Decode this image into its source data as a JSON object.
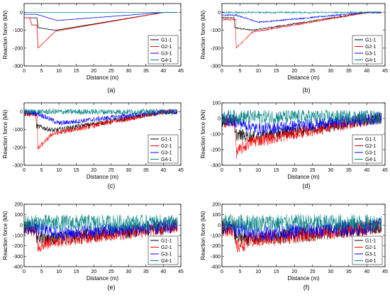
{
  "colors": {
    "G1-1": "#000000",
    "G2-1": "#ff0000",
    "G3-1": "#0000ff",
    "G4-1": "#008080"
  },
  "chart_data": [
    {
      "panel_label": "(a)",
      "type": "line",
      "xlabel": "Distance (m)",
      "ylabel": "Reaction force (kN)",
      "xlim": [
        0,
        45
      ],
      "ylim": [
        -300,
        50
      ],
      "xticks": [
        0,
        5,
        10,
        15,
        20,
        25,
        30,
        35,
        40,
        45
      ],
      "yticks": [
        0,
        -100,
        -200,
        -300
      ],
      "legend": {
        "placement": "bottom-right",
        "entries": [
          "G1-1",
          "G2-1",
          "G3-1",
          "G4-1"
        ]
      },
      "noise": 0,
      "series": [
        {
          "name": "G1-1",
          "x": [
            0,
            2,
            3.9,
            4,
            9,
            40,
            44
          ],
          "y": [
            -30,
            -30,
            -30,
            -85,
            -100,
            0,
            0
          ]
        },
        {
          "name": "G2-1",
          "x": [
            0,
            1.8,
            1.9,
            3.9,
            4,
            9,
            40,
            44
          ],
          "y": [
            -30,
            -30,
            -70,
            -70,
            -200,
            -105,
            0,
            0
          ]
        },
        {
          "name": "G3-1",
          "x": [
            0,
            3.5,
            9.5,
            40,
            44
          ],
          "y": [
            -10,
            -10,
            -45,
            0,
            0
          ]
        },
        {
          "name": "G4-1",
          "x": [
            0,
            44
          ],
          "y": [
            0,
            0
          ]
        }
      ]
    },
    {
      "panel_label": "(b)",
      "type": "line",
      "xlabel": "Distance (m)",
      "ylabel": "Reaction force (kN)",
      "xlim": [
        0,
        45
      ],
      "ylim": [
        -300,
        50
      ],
      "xticks": [
        0,
        5,
        10,
        15,
        20,
        25,
        30,
        35,
        40,
        45
      ],
      "yticks": [
        0,
        -100,
        -200,
        -300
      ],
      "legend": {
        "placement": "bottom-right",
        "entries": [
          "G1-1",
          "G2-1",
          "G3-1",
          "G4-1"
        ]
      },
      "noise": 4,
      "series": [
        {
          "name": "G1-1",
          "x": [
            0,
            3.4,
            3.5,
            8.5,
            40,
            44
          ],
          "y": [
            -30,
            -30,
            -85,
            -100,
            0,
            0
          ]
        },
        {
          "name": "G2-1",
          "x": [
            0,
            3.8,
            3.9,
            8.5,
            40,
            44
          ],
          "y": [
            -40,
            -40,
            -200,
            -110,
            0,
            0
          ]
        },
        {
          "name": "G3-1",
          "x": [
            0,
            4,
            10,
            40,
            44
          ],
          "y": [
            -15,
            -15,
            -55,
            0,
            0
          ]
        },
        {
          "name": "G4-1",
          "x": [
            0,
            44
          ],
          "y": [
            0,
            0
          ]
        }
      ]
    },
    {
      "panel_label": "(c)",
      "type": "line",
      "xlabel": "Distance (m)",
      "ylabel": "Reaction force (kN)",
      "xlim": [
        0,
        45
      ],
      "ylim": [
        -300,
        50
      ],
      "xticks": [
        0,
        5,
        10,
        15,
        20,
        25,
        30,
        35,
        40,
        45
      ],
      "yticks": [
        0,
        -100,
        -200,
        -300
      ],
      "legend": {
        "placement": "bottom-right",
        "entries": [
          "G1-1",
          "G2-1",
          "G3-1",
          "G4-1"
        ]
      },
      "noise": 14,
      "series": [
        {
          "name": "G1-1",
          "x": [
            0,
            3.4,
            3.5,
            8.5,
            40,
            44
          ],
          "y": [
            -10,
            -10,
            -80,
            -105,
            -5,
            0
          ]
        },
        {
          "name": "G2-1",
          "x": [
            0,
            3.8,
            3.9,
            8,
            40,
            44
          ],
          "y": [
            -15,
            -15,
            -210,
            -125,
            0,
            0
          ]
        },
        {
          "name": "G3-1",
          "x": [
            0,
            4,
            10,
            40,
            44
          ],
          "y": [
            0,
            -10,
            -65,
            0,
            0
          ]
        },
        {
          "name": "G4-1",
          "x": [
            0,
            44
          ],
          "y": [
            0,
            0
          ]
        }
      ]
    },
    {
      "panel_label": "(d)",
      "type": "line",
      "xlabel": "Distance (m)",
      "ylabel": "Reaction force (kN)",
      "xlim": [
        0,
        45
      ],
      "ylim": [
        -300,
        100
      ],
      "xticks": [
        0,
        5,
        10,
        15,
        20,
        25,
        30,
        35,
        40,
        45
      ],
      "yticks": [
        100,
        0,
        -100,
        -200,
        -300
      ],
      "legend": {
        "placement": "bottom-right",
        "entries": [
          "G1-1",
          "G2-1",
          "G3-1",
          "G4-1"
        ]
      },
      "noise": 40,
      "series": [
        {
          "name": "G1-1",
          "x": [
            0,
            3.4,
            3.5,
            8.5,
            40,
            44
          ],
          "y": [
            -15,
            -15,
            -100,
            -120,
            -10,
            0
          ]
        },
        {
          "name": "G2-1",
          "x": [
            0,
            3.8,
            3.9,
            8,
            40,
            44
          ],
          "y": [
            -20,
            -20,
            -220,
            -150,
            -10,
            0
          ]
        },
        {
          "name": "G3-1",
          "x": [
            0,
            4,
            10,
            40,
            44
          ],
          "y": [
            0,
            -20,
            -70,
            -5,
            0
          ]
        },
        {
          "name": "G4-1",
          "x": [
            0,
            44
          ],
          "y": [
            10,
            10
          ]
        }
      ]
    },
    {
      "panel_label": "(e)",
      "type": "line",
      "xlabel": "Distance (m)",
      "ylabel": "Reaction force (kN)",
      "xlim": [
        0,
        45
      ],
      "ylim": [
        -400,
        200
      ],
      "xticks": [
        0,
        5,
        10,
        15,
        20,
        25,
        30,
        35,
        40,
        45
      ],
      "yticks": [
        200,
        100,
        0,
        -100,
        -200,
        -300,
        -400
      ],
      "legend": {
        "placement": "bottom-right",
        "entries": [
          "G1-1",
          "G2-1",
          "G3-1",
          "G4-1"
        ]
      },
      "noise": 70,
      "series": [
        {
          "name": "G1-1",
          "x": [
            0,
            3.4,
            3.5,
            8.5,
            40,
            44
          ],
          "y": [
            -30,
            -30,
            -110,
            -130,
            -30,
            0
          ]
        },
        {
          "name": "G2-1",
          "x": [
            0,
            3.8,
            3.9,
            8,
            40,
            44
          ],
          "y": [
            -40,
            -40,
            -200,
            -150,
            -30,
            0
          ]
        },
        {
          "name": "G3-1",
          "x": [
            0,
            4,
            10,
            40,
            44
          ],
          "y": [
            -20,
            -30,
            -80,
            -20,
            0
          ]
        },
        {
          "name": "G4-1",
          "x": [
            0,
            44
          ],
          "y": [
            20,
            20
          ]
        }
      ]
    },
    {
      "panel_label": "(f)",
      "type": "line",
      "xlabel": "Distance (m)",
      "ylabel": "Reaction force (kN)",
      "xlim": [
        0,
        45
      ],
      "ylim": [
        -400,
        200
      ],
      "xticks": [
        0,
        5,
        10,
        15,
        20,
        25,
        30,
        35,
        40,
        45
      ],
      "yticks": [
        200,
        100,
        0,
        -100,
        -200,
        -300,
        -400
      ],
      "legend": {
        "placement": "bottom-right",
        "entries": [
          "G1-1",
          "G2-1",
          "G3-1",
          "G4-1"
        ]
      },
      "noise": 75,
      "series": [
        {
          "name": "G1-1",
          "x": [
            0,
            3.4,
            3.5,
            8.5,
            40,
            44
          ],
          "y": [
            -30,
            -30,
            -110,
            -130,
            -30,
            0
          ]
        },
        {
          "name": "G2-1",
          "x": [
            0,
            3.8,
            3.9,
            8,
            40,
            44
          ],
          "y": [
            -40,
            -40,
            -210,
            -150,
            -30,
            0
          ]
        },
        {
          "name": "G3-1",
          "x": [
            0,
            4,
            10,
            40,
            44
          ],
          "y": [
            -20,
            -30,
            -80,
            -20,
            0
          ]
        },
        {
          "name": "G4-1",
          "x": [
            0,
            44
          ],
          "y": [
            20,
            20
          ]
        }
      ]
    }
  ]
}
